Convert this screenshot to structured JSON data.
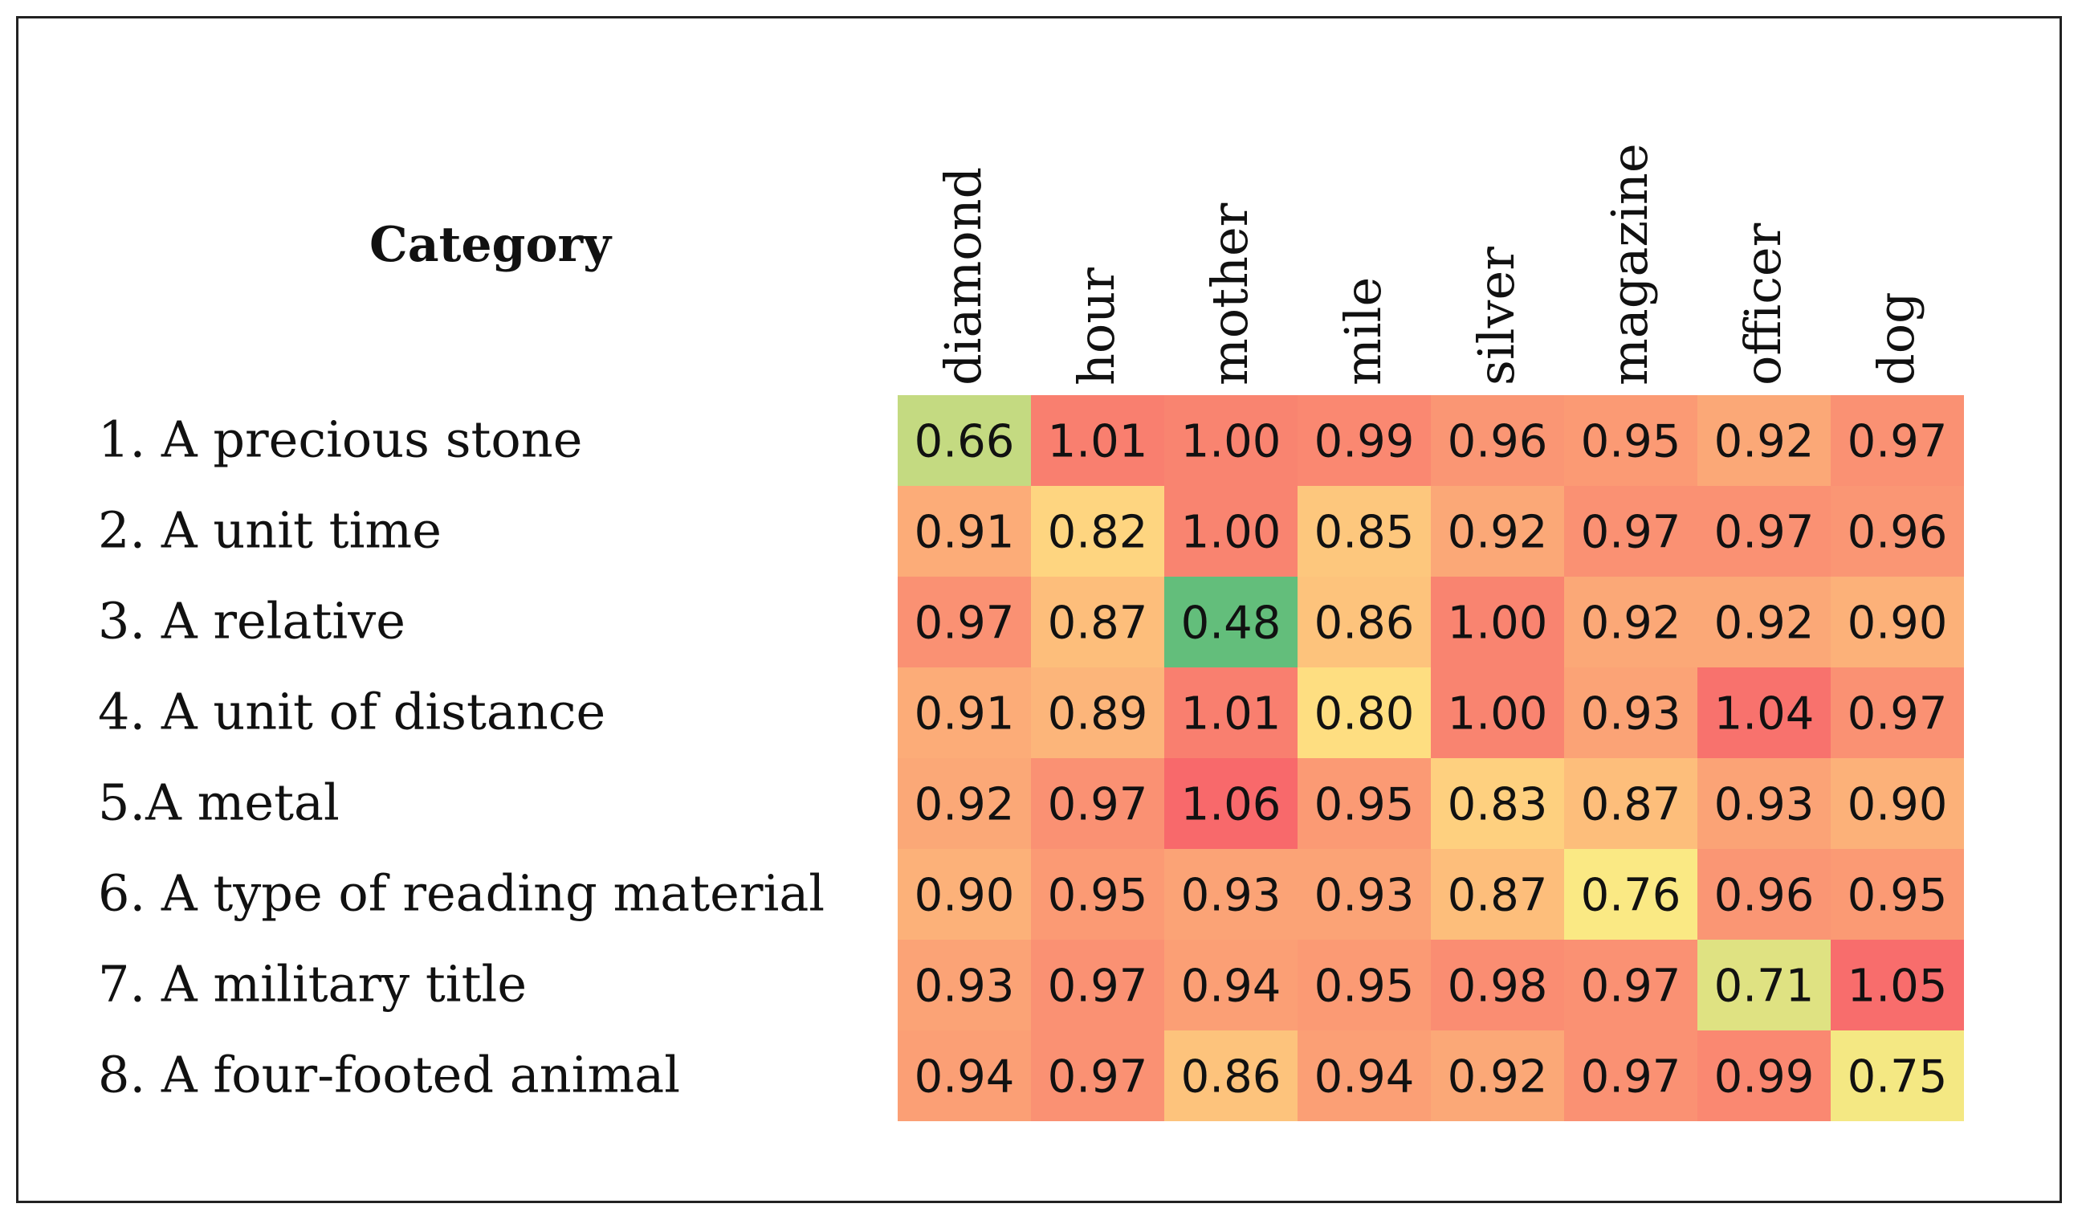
{
  "chart_data": {
    "type": "heatmap",
    "row_header": "Category",
    "rows": [
      "1. A precious stone",
      "2. A unit time",
      "3. A relative",
      "4. A unit of distance",
      "5.A metal",
      "6. A type of reading material",
      "7. A military title",
      "8. A four-footed animal"
    ],
    "columns": [
      "diamond",
      "hour",
      "mother",
      "mile",
      "silver",
      "magazine",
      "officer",
      "dog"
    ],
    "values": [
      [
        0.66,
        1.01,
        1.0,
        0.99,
        0.96,
        0.95,
        0.92,
        0.97
      ],
      [
        0.91,
        0.82,
        1.0,
        0.85,
        0.92,
        0.97,
        0.97,
        0.96
      ],
      [
        0.97,
        0.87,
        0.48,
        0.86,
        1.0,
        0.92,
        0.92,
        0.9
      ],
      [
        0.91,
        0.89,
        1.01,
        0.8,
        1.0,
        0.93,
        1.04,
        0.97
      ],
      [
        0.92,
        0.97,
        1.06,
        0.95,
        0.83,
        0.87,
        0.93,
        0.9
      ],
      [
        0.9,
        0.95,
        0.93,
        0.93,
        0.87,
        0.76,
        0.96,
        0.95
      ],
      [
        0.93,
        0.97,
        0.94,
        0.95,
        0.98,
        0.97,
        0.71,
        1.05
      ],
      [
        0.94,
        0.97,
        0.86,
        0.94,
        0.92,
        0.97,
        0.99,
        0.75
      ]
    ],
    "color_scale": {
      "low": "#63be7b",
      "mid": "#ffeb84",
      "high": "#f8696b",
      "direction": "low values green, high values red"
    }
  }
}
